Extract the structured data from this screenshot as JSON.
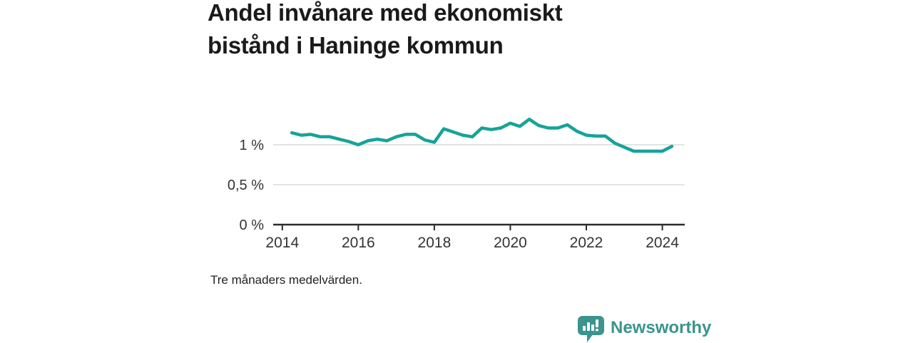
{
  "title": {
    "text": "Andel invånare med ekonomiskt bistånd i Haninge kommun",
    "line1": "Andel invånare med ekonomiskt",
    "line2": "bistånd i Haninge kommun"
  },
  "footnote": "Tre månaders medelvärden.",
  "branding": {
    "name": "Newsworthy",
    "icon": "speech-bubble-with-bar-chart-and-exclamation"
  },
  "colors": {
    "line": "#16a399",
    "grid": "#dcdcdc",
    "axis": "#2b2b2b",
    "tick_text": "#333333",
    "title_text": "#1a1a1a",
    "brand": "#3b948d",
    "background": "#ffffff"
  },
  "chart_data": {
    "type": "line",
    "title": "Andel invånare med ekonomiskt bistånd i Haninge kommun",
    "subtitle": "",
    "xlabel": "",
    "ylabel": "",
    "unit": "%",
    "grid": "horizontal",
    "legend_position": "none",
    "series_name": "Andel invånare med ekonomiskt bistånd",
    "xlim": [
      2013.76,
      2024.59
    ],
    "ylim": [
      0,
      1.41
    ],
    "x_ticks": [
      2014,
      2016,
      2018,
      2020,
      2022,
      2024
    ],
    "y_ticks": [
      {
        "value": 0,
        "label": "0 %"
      },
      {
        "value": 0.5,
        "label": "0,5 %"
      },
      {
        "value": 1,
        "label": "1 %"
      }
    ],
    "x": [
      2014.25,
      2014.5,
      2014.75,
      2015.0,
      2015.25,
      2015.5,
      2015.75,
      2016.0,
      2016.25,
      2016.5,
      2016.75,
      2017.0,
      2017.25,
      2017.5,
      2017.75,
      2018.0,
      2018.25,
      2018.5,
      2018.75,
      2019.0,
      2019.25,
      2019.5,
      2019.75,
      2020.0,
      2020.25,
      2020.5,
      2020.75,
      2021.0,
      2021.25,
      2021.5,
      2021.75,
      2022.0,
      2022.25,
      2022.5,
      2022.75,
      2023.0,
      2023.25,
      2023.5,
      2023.75,
      2024.0,
      2024.25
    ],
    "values": [
      1.15,
      1.12,
      1.13,
      1.1,
      1.1,
      1.07,
      1.04,
      1.0,
      1.05,
      1.07,
      1.05,
      1.1,
      1.13,
      1.13,
      1.06,
      1.03,
      1.2,
      1.16,
      1.12,
      1.1,
      1.21,
      1.19,
      1.21,
      1.27,
      1.23,
      1.32,
      1.24,
      1.21,
      1.21,
      1.25,
      1.17,
      1.12,
      1.11,
      1.11,
      1.02,
      0.97,
      0.92,
      0.92,
      0.92,
      0.92,
      0.98
    ]
  }
}
